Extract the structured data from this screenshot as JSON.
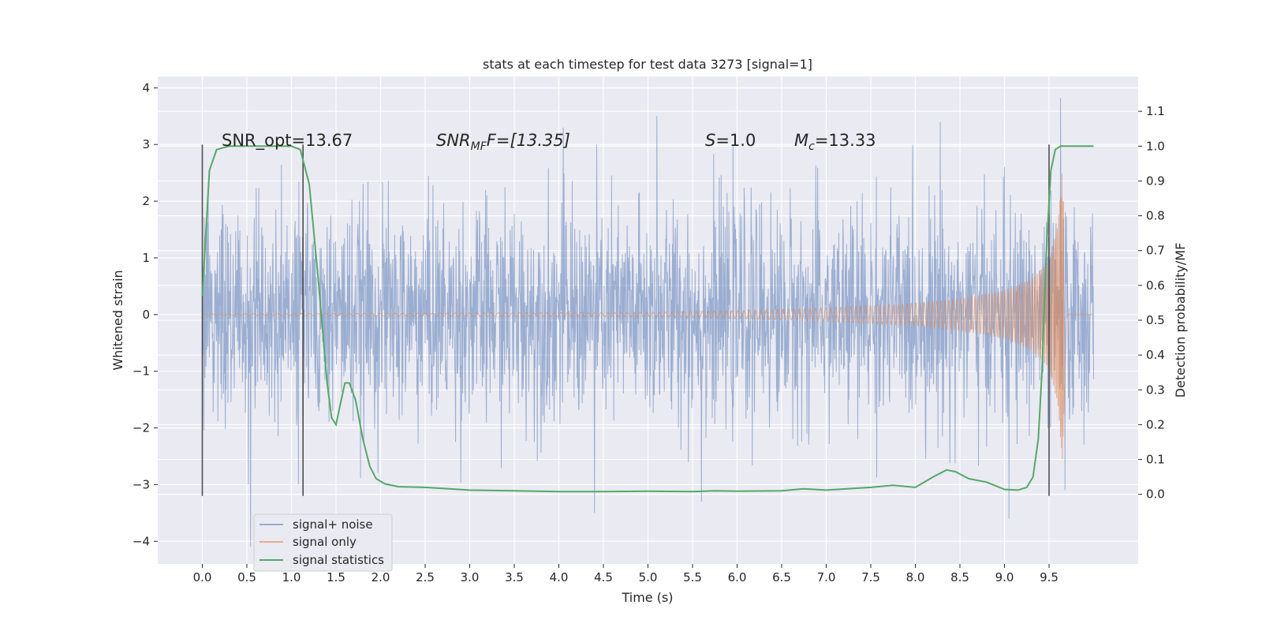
{
  "chart_data": {
    "type": "line",
    "title": "stats at each timestep for test data 3273 [signal=1]",
    "xlabel": "Time (s)",
    "ylabel": "Whitened strain",
    "ylabel_right": "Detection probability/MF",
    "xlim": [
      -0.5,
      10.5
    ],
    "ylim": [
      -4.4,
      4.2
    ],
    "ylim_right": [
      -0.2,
      1.2
    ],
    "xticks": [
      "0.0",
      "0.5",
      "1.0",
      "1.5",
      "2.0",
      "2.5",
      "3.0",
      "3.5",
      "4.0",
      "4.5",
      "5.0",
      "5.5",
      "6.0",
      "6.5",
      "7.0",
      "7.5",
      "8.0",
      "8.5",
      "9.0",
      "9.5"
    ],
    "yticks_left": [
      "−4",
      "−3",
      "−2",
      "−1",
      "0",
      "1",
      "2",
      "3",
      "4"
    ],
    "yticks_right": [
      "0.0",
      "0.1",
      "0.2",
      "0.3",
      "0.4",
      "0.5",
      "0.6",
      "0.7",
      "0.8",
      "0.9",
      "1.0",
      "1.1"
    ],
    "grid": true,
    "legend_position": "lower-left",
    "annotations": {
      "snr_opt": "SNR_opt=13.67",
      "snr_mf_base": "SNR",
      "snr_mf_sub": "MF",
      "snr_mf_suffix": "F=[13.35]",
      "s_base": "S",
      "s_suffix": "=1.0",
      "mc_base": "M",
      "mc_sub": "c",
      "mc_suffix": "=13.33"
    },
    "vertical_markers": [
      0.0,
      1.13,
      9.5
    ],
    "series": [
      {
        "name": "signal+ noise",
        "color": "#4c72b0",
        "axis": "left",
        "t_start": 0.0,
        "t_end": 10.0,
        "noise_std": 0.95,
        "extremes": [
          [
            0.54,
            -4.1
          ],
          [
            1.08,
            -3.0
          ],
          [
            4.05,
            3.3
          ],
          [
            4.4,
            -3.5
          ],
          [
            5.1,
            3.5
          ],
          [
            5.6,
            -3.3
          ],
          [
            8.28,
            3.4
          ],
          [
            9.05,
            -3.6
          ],
          [
            9.63,
            3.82
          ],
          [
            9.68,
            -3.1
          ]
        ]
      },
      {
        "name": "signal only",
        "color": "#dd8452",
        "axis": "left",
        "type": "chirp",
        "t_merge": 9.65,
        "peak_amplitude": 2.6,
        "t": [
          0.0,
          5.0,
          6.0,
          7.0,
          8.0,
          8.5,
          9.0,
          9.3,
          9.5,
          9.6,
          9.65,
          9.7,
          10.0
        ],
        "envelope": [
          0.01,
          0.04,
          0.07,
          0.12,
          0.2,
          0.28,
          0.42,
          0.62,
          0.95,
          1.6,
          2.6,
          0.02,
          0.01
        ]
      },
      {
        "name": "signal statistics",
        "color": "#55a868",
        "axis": "right",
        "x": [
          0.0,
          0.08,
          0.16,
          0.3,
          0.5,
          0.8,
          1.0,
          1.1,
          1.2,
          1.3,
          1.4,
          1.45,
          1.5,
          1.55,
          1.6,
          1.65,
          1.72,
          1.8,
          1.88,
          1.95,
          2.05,
          2.2,
          2.5,
          3.0,
          3.5,
          4.0,
          4.5,
          5.0,
          5.5,
          5.75,
          6.0,
          6.5,
          6.75,
          7.0,
          7.5,
          7.75,
          8.0,
          8.2,
          8.35,
          8.45,
          8.6,
          8.8,
          9.0,
          9.15,
          9.25,
          9.32,
          9.38,
          9.42,
          9.47,
          9.52,
          9.57,
          9.63,
          9.7,
          9.85,
          10.0
        ],
        "y": [
          0.57,
          0.93,
          0.99,
          1.0,
          1.0,
          1.0,
          1.0,
          0.99,
          0.89,
          0.62,
          0.32,
          0.22,
          0.2,
          0.26,
          0.32,
          0.32,
          0.27,
          0.16,
          0.08,
          0.045,
          0.03,
          0.022,
          0.02,
          0.012,
          0.01,
          0.008,
          0.008,
          0.009,
          0.008,
          0.01,
          0.009,
          0.01,
          0.016,
          0.012,
          0.02,
          0.026,
          0.02,
          0.05,
          0.07,
          0.065,
          0.045,
          0.035,
          0.014,
          0.012,
          0.02,
          0.05,
          0.16,
          0.35,
          0.7,
          0.93,
          0.99,
          1.0,
          1.0,
          1.0,
          1.0
        ]
      }
    ]
  }
}
